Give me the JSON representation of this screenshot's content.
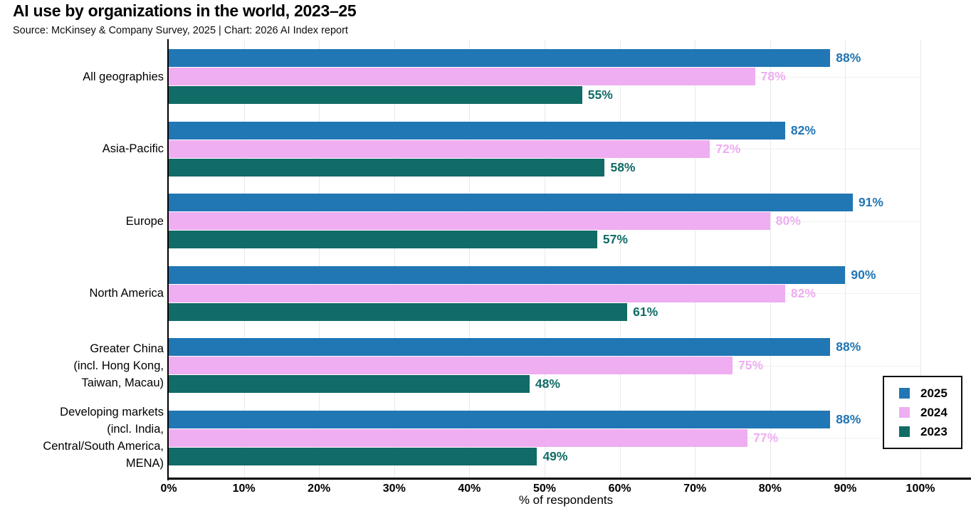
{
  "header": {
    "title": "AI use by organizations in the world, 2023–25",
    "subtitle": "Source: McKinsey & Company Survey, 2025 | Chart: 2026 AI Index report"
  },
  "chart_data": {
    "type": "bar",
    "orientation": "horizontal",
    "title": "AI use by organizations in the world, 2023–25",
    "subtitle": "Source: McKinsey & Company Survey, 2025 | Chart: 2026 AI Index report",
    "categories": [
      "All geographies",
      "Asia-Pacific",
      "Europe",
      "North America",
      "Greater China\n(incl. Hong Kong,\nTaiwan, Macau)",
      "Developing markets\n(incl. India,\nCentral/South America,\nMENA)"
    ],
    "series": [
      {
        "name": "2025",
        "color": "#2176B4",
        "values": [
          88,
          82,
          91,
          90,
          88,
          88
        ]
      },
      {
        "name": "2024",
        "color": "#EEAEF1",
        "values": [
          78,
          72,
          80,
          82,
          75,
          77
        ]
      },
      {
        "name": "2023",
        "color": "#116B66",
        "values": [
          55,
          58,
          57,
          61,
          48,
          49
        ]
      }
    ],
    "value_suffix": "%",
    "xlabel": "% of respondents",
    "x_ticks": [
      "0%",
      "10%",
      "20%",
      "30%",
      "40%",
      "50%",
      "60%",
      "70%",
      "80%",
      "90%",
      "100%"
    ],
    "xlim": [
      0,
      100
    ],
    "grid": true,
    "legend_position": "right-bottom",
    "axis_color": "#000000"
  }
}
